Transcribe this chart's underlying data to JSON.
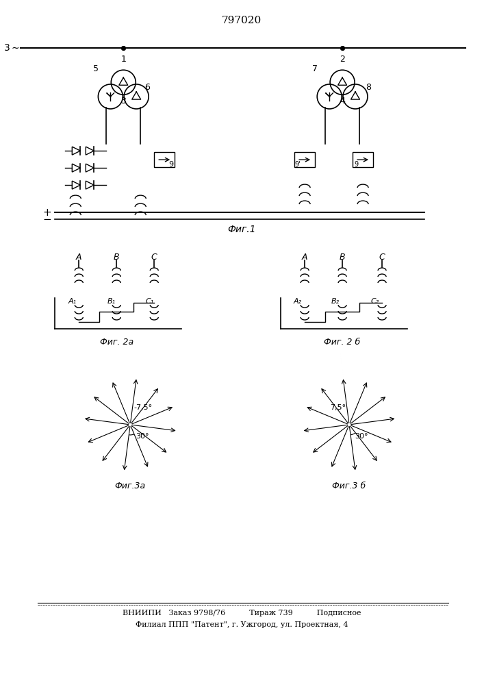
{
  "title": "797020",
  "bottom_line1": "ВНИИПИ   Заказ 9798/76          Тираж 739          Подписное",
  "bottom_line2": "Филиал ППП \"Патент\", г. Ужгород, ул. Проектная, 4",
  "fig1_label": "Фиг.1",
  "fig2a_label": "Фиг. 2а",
  "fig2b_label": "Фиг. 2 б",
  "fig3a_label": "Фиг.3а",
  "fig3b_label": "Фиг.3 б",
  "bg_color": "#ffffff",
  "line_color": "#000000"
}
